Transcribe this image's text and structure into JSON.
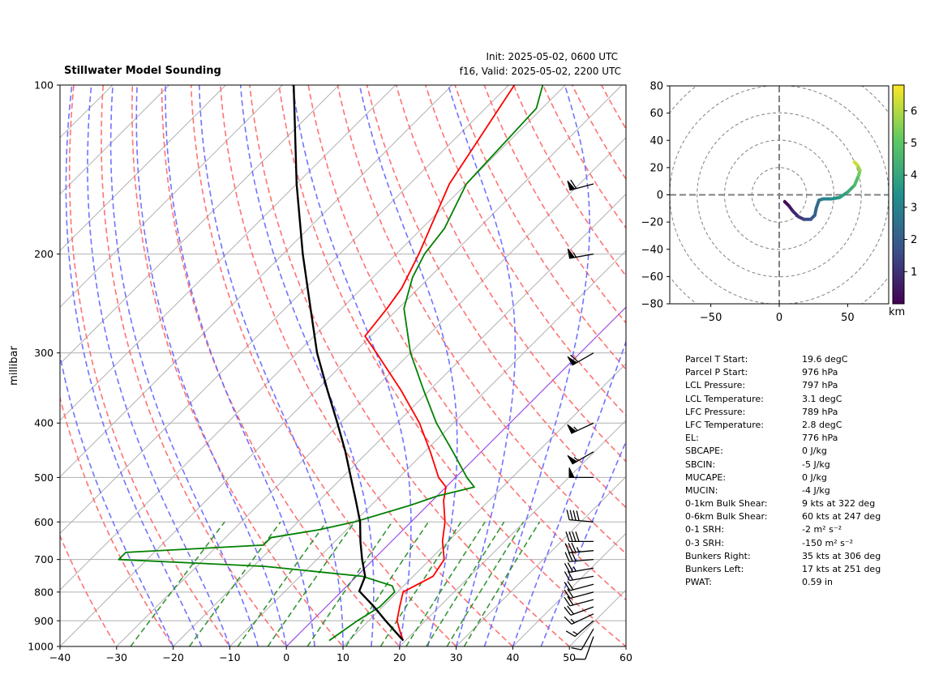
{
  "header": {
    "title": "Stillwater Model Sounding",
    "init": "Init: 2025-05-02, 0600 UTC",
    "valid": "f16, Valid: 2025-05-02, 2200 UTC"
  },
  "chart_data": [
    {
      "type": "skewt",
      "ylabel": "millibar",
      "y_scale": "log",
      "ylim": [
        1000,
        100
      ],
      "xlim": [
        -40,
        60
      ],
      "xticks": [
        "−40",
        "−30",
        "−20",
        "−10",
        "0",
        "10",
        "20",
        "30",
        "40",
        "50",
        "60"
      ],
      "yticks": [
        "1000",
        "900",
        "800",
        "700",
        "600",
        "500",
        "400",
        "300",
        "200",
        "100"
      ],
      "colors": {
        "temperature": "#ff0000",
        "dewpoint": "#008000",
        "parcel": "#000000",
        "dry_adiabats": "#ff6464",
        "moist_adiabats": "#6464ff",
        "mixing_ratio": "#228b22",
        "isotherms": "#b0b0b0",
        "zero_isotherm": "#8a2be2"
      },
      "temperature": [
        [
          976,
          19.6
        ],
        [
          950,
          18
        ],
        [
          900,
          15
        ],
        [
          850,
          13
        ],
        [
          800,
          11
        ],
        [
          750,
          13.5
        ],
        [
          700,
          12.5
        ],
        [
          650,
          9
        ],
        [
          600,
          6
        ],
        [
          550,
          2
        ],
        [
          520,
          0
        ],
        [
          500,
          -3
        ],
        [
          450,
          -9
        ],
        [
          400,
          -16
        ],
        [
          350,
          -25
        ],
        [
          300,
          -36
        ],
        [
          280,
          -41
        ],
        [
          250,
          -42
        ],
        [
          230,
          -43
        ],
        [
          200,
          -46
        ],
        [
          150,
          -53
        ],
        [
          100,
          -59
        ]
      ],
      "dewpoint": [
        [
          976,
          6.5
        ],
        [
          950,
          7
        ],
        [
          900,
          8
        ],
        [
          850,
          9.5
        ],
        [
          800,
          9.5
        ],
        [
          780,
          8
        ],
        [
          750,
          1
        ],
        [
          720,
          -18
        ],
        [
          700,
          -45
        ],
        [
          680,
          -45
        ],
        [
          660,
          -22
        ],
        [
          640,
          -22
        ],
        [
          620,
          -15
        ],
        [
          600,
          -10
        ],
        [
          560,
          -3
        ],
        [
          540,
          0
        ],
        [
          520,
          5
        ],
        [
          500,
          2
        ],
        [
          450,
          -5
        ],
        [
          400,
          -13
        ],
        [
          350,
          -21
        ],
        [
          300,
          -30
        ],
        [
          250,
          -39
        ],
        [
          220,
          -43
        ],
        [
          200,
          -45
        ],
        [
          180,
          -46
        ],
        [
          150,
          -50
        ],
        [
          110,
          -51
        ],
        [
          100,
          -54
        ]
      ],
      "parcel": [
        [
          976,
          19.6
        ],
        [
          900,
          13
        ],
        [
          850,
          8.5
        ],
        [
          797,
          3.1
        ],
        [
          750,
          1.5
        ],
        [
          700,
          -2
        ],
        [
          650,
          -5.5
        ],
        [
          600,
          -9
        ],
        [
          550,
          -13.5
        ],
        [
          500,
          -18.5
        ],
        [
          450,
          -24
        ],
        [
          400,
          -30.5
        ],
        [
          350,
          -38
        ],
        [
          300,
          -46.5
        ],
        [
          250,
          -55.5
        ],
        [
          200,
          -66.5
        ],
        [
          150,
          -80
        ],
        [
          100,
          -98
        ]
      ],
      "wind_barbs": [
        {
          "p": 960,
          "speed_kt": 10,
          "dir_deg": 200
        },
        {
          "p": 930,
          "speed_kt": 10,
          "dir_deg": 210
        },
        {
          "p": 900,
          "speed_kt": 15,
          "dir_deg": 230
        },
        {
          "p": 875,
          "speed_kt": 15,
          "dir_deg": 245
        },
        {
          "p": 850,
          "speed_kt": 20,
          "dir_deg": 250
        },
        {
          "p": 825,
          "speed_kt": 20,
          "dir_deg": 255
        },
        {
          "p": 800,
          "speed_kt": 20,
          "dir_deg": 255
        },
        {
          "p": 775,
          "speed_kt": 20,
          "dir_deg": 255
        },
        {
          "p": 750,
          "speed_kt": 20,
          "dir_deg": 260
        },
        {
          "p": 725,
          "speed_kt": 25,
          "dir_deg": 260
        },
        {
          "p": 700,
          "speed_kt": 30,
          "dir_deg": 265
        },
        {
          "p": 675,
          "speed_kt": 35,
          "dir_deg": 265
        },
        {
          "p": 650,
          "speed_kt": 40,
          "dir_deg": 270
        },
        {
          "p": 600,
          "speed_kt": 40,
          "dir_deg": 275
        },
        {
          "p": 500,
          "speed_kt": 50,
          "dir_deg": 270
        },
        {
          "p": 450,
          "speed_kt": 55,
          "dir_deg": 240
        },
        {
          "p": 400,
          "speed_kt": 55,
          "dir_deg": 245
        },
        {
          "p": 300,
          "speed_kt": 60,
          "dir_deg": 240
        },
        {
          "p": 200,
          "speed_kt": 55,
          "dir_deg": 260
        },
        {
          "p": 150,
          "speed_kt": 60,
          "dir_deg": 255
        }
      ]
    },
    {
      "type": "hodograph",
      "xlim": [
        -80,
        80
      ],
      "ylim": [
        -80,
        80
      ],
      "xticks": [
        "−50",
        "0",
        "50"
      ],
      "yticks": [
        "80",
        "60",
        "40",
        "20",
        "0",
        "−20",
        "−40",
        "−60",
        "−80"
      ],
      "ring_interval": 20,
      "colorbar_label": "km",
      "colorbar_ticks": [
        "1",
        "2",
        "3",
        "4",
        "5",
        "6"
      ],
      "colorbar_range": [
        0,
        6.8
      ],
      "series": [
        {
          "height_km": 0.0,
          "u": 4,
          "v": -5
        },
        {
          "height_km": 0.3,
          "u": 7,
          "v": -8
        },
        {
          "height_km": 0.6,
          "u": 10,
          "v": -12
        },
        {
          "height_km": 1.0,
          "u": 14,
          "v": -16
        },
        {
          "height_km": 1.3,
          "u": 18,
          "v": -18
        },
        {
          "height_km": 1.7,
          "u": 23,
          "v": -18
        },
        {
          "height_km": 2.0,
          "u": 26,
          "v": -15
        },
        {
          "height_km": 2.2,
          "u": 27,
          "v": -10
        },
        {
          "height_km": 2.5,
          "u": 29,
          "v": -4
        },
        {
          "height_km": 2.8,
          "u": 32,
          "v": -3
        },
        {
          "height_km": 3.2,
          "u": 38,
          "v": -3
        },
        {
          "height_km": 3.6,
          "u": 44,
          "v": -2
        },
        {
          "height_km": 4.0,
          "u": 50,
          "v": 2
        },
        {
          "height_km": 4.5,
          "u": 55,
          "v": 7
        },
        {
          "height_km": 5.0,
          "u": 58,
          "v": 14
        },
        {
          "height_km": 5.5,
          "u": 59,
          "v": 18
        },
        {
          "height_km": 6.0,
          "u": 57,
          "v": 22
        },
        {
          "height_km": 6.5,
          "u": 55,
          "v": 24
        }
      ]
    }
  ],
  "stats": [
    {
      "label": "Parcel T Start:",
      "value": "19.6 degC"
    },
    {
      "label": "Parcel P Start:",
      "value": "976 hPa"
    },
    {
      "label": "LCL Pressure:",
      "value": "797 hPa"
    },
    {
      "label": "LCL Temperature:",
      "value": "3.1 degC"
    },
    {
      "label": "LFC Pressure:",
      "value": "789 hPa"
    },
    {
      "label": "LFC Temperature:",
      "value": "2.8 degC"
    },
    {
      "label": "EL:",
      "value": "776 hPa"
    },
    {
      "label": "SBCAPE:",
      "value": "0 J/kg"
    },
    {
      "label": "SBCIN:",
      "value": "-5 J/kg"
    },
    {
      "label": "MUCAPE:",
      "value": "0 J/kg"
    },
    {
      "label": "MUCIN:",
      "value": "-4 J/kg"
    },
    {
      "label": "0-1km Bulk Shear:",
      "value": "9 kts at 322 deg"
    },
    {
      "label": "0-6km Bulk Shear:",
      "value": "60 kts at 247 deg"
    },
    {
      "label": "0-1 SRH:",
      "value": "-2 m² s⁻²"
    },
    {
      "label": "0-3 SRH:",
      "value": "-150 m² s⁻²"
    },
    {
      "label": "Bunkers Right:",
      "value": "35 kts at 306 deg"
    },
    {
      "label": "Bunkers Left:",
      "value": "17 kts at 251 deg"
    },
    {
      "label": "PWAT:",
      "value": "0.59 in"
    }
  ]
}
